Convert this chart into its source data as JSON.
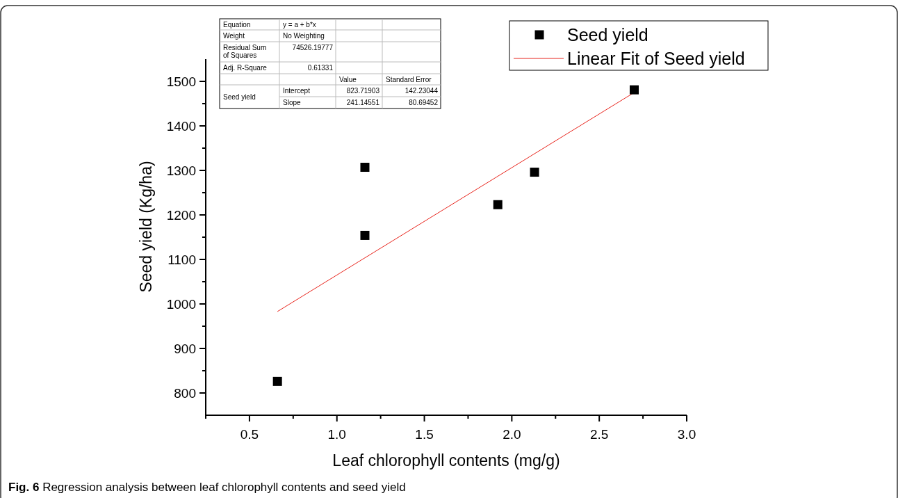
{
  "chart_data": {
    "type": "scatter",
    "xlabel": "Leaf chlorophyll contents (mg/g)",
    "ylabel": "Seed yield (Kg/ha)",
    "xlim": [
      0.25,
      3.0
    ],
    "xticks": [
      {
        "value": 0.25,
        "label": null
      },
      0.5,
      {
        "value": 0.75,
        "label": null
      },
      {
        "value": 1.0,
        "label": "1.0"
      },
      {
        "value": 1.25,
        "label": null
      },
      1.5,
      {
        "value": 1.75,
        "label": null
      },
      {
        "value": 2.0,
        "label": "2.0"
      },
      {
        "value": 2.25,
        "label": null
      },
      2.5,
      {
        "value": 2.75,
        "label": null
      },
      {
        "value": 3.0,
        "label": "3.0"
      }
    ],
    "ylim": [
      750,
      1550
    ],
    "yticks": [
      800,
      {
        "value": 850,
        "label": null
      },
      900,
      {
        "value": 950,
        "label": null
      },
      1000,
      {
        "value": 1050,
        "label": null
      },
      1100,
      {
        "value": 1150,
        "label": null
      },
      1200,
      {
        "value": 1250,
        "label": null
      },
      1300,
      {
        "value": 1350,
        "label": null
      },
      1400,
      {
        "value": 1450,
        "label": null
      },
      1500
    ],
    "legend": "top right",
    "grid": false,
    "series": [
      {
        "name": "Seed yield",
        "marker": "square",
        "color": "#000000",
        "x": [
          0.66,
          1.16,
          1.16,
          1.92,
          2.13,
          2.7
        ],
        "values": [
          826,
          1154,
          1307,
          1223,
          1296,
          1481
        ]
      },
      {
        "name": "Linear Fit of Seed yield",
        "type": "line",
        "color": "#e8241c",
        "x": [
          0.66,
          2.7
        ],
        "values": [
          983,
          1475
        ]
      }
    ],
    "annotations": [
      "Equation",
      "y = a + b*x",
      "Weight",
      "No Weighting",
      "Residual Sum of Squares",
      "74526.19777",
      "Adj. R-Square",
      "0.61331",
      "Value",
      "Standard Error",
      "Seed yield",
      "Intercept",
      "823.71903",
      "142.23044",
      "Slope",
      "241.14551",
      "80.69452",
      "Fig. 6 Regression analysis between leaf chlorophyll contents and seed yield"
    ]
  }
}
